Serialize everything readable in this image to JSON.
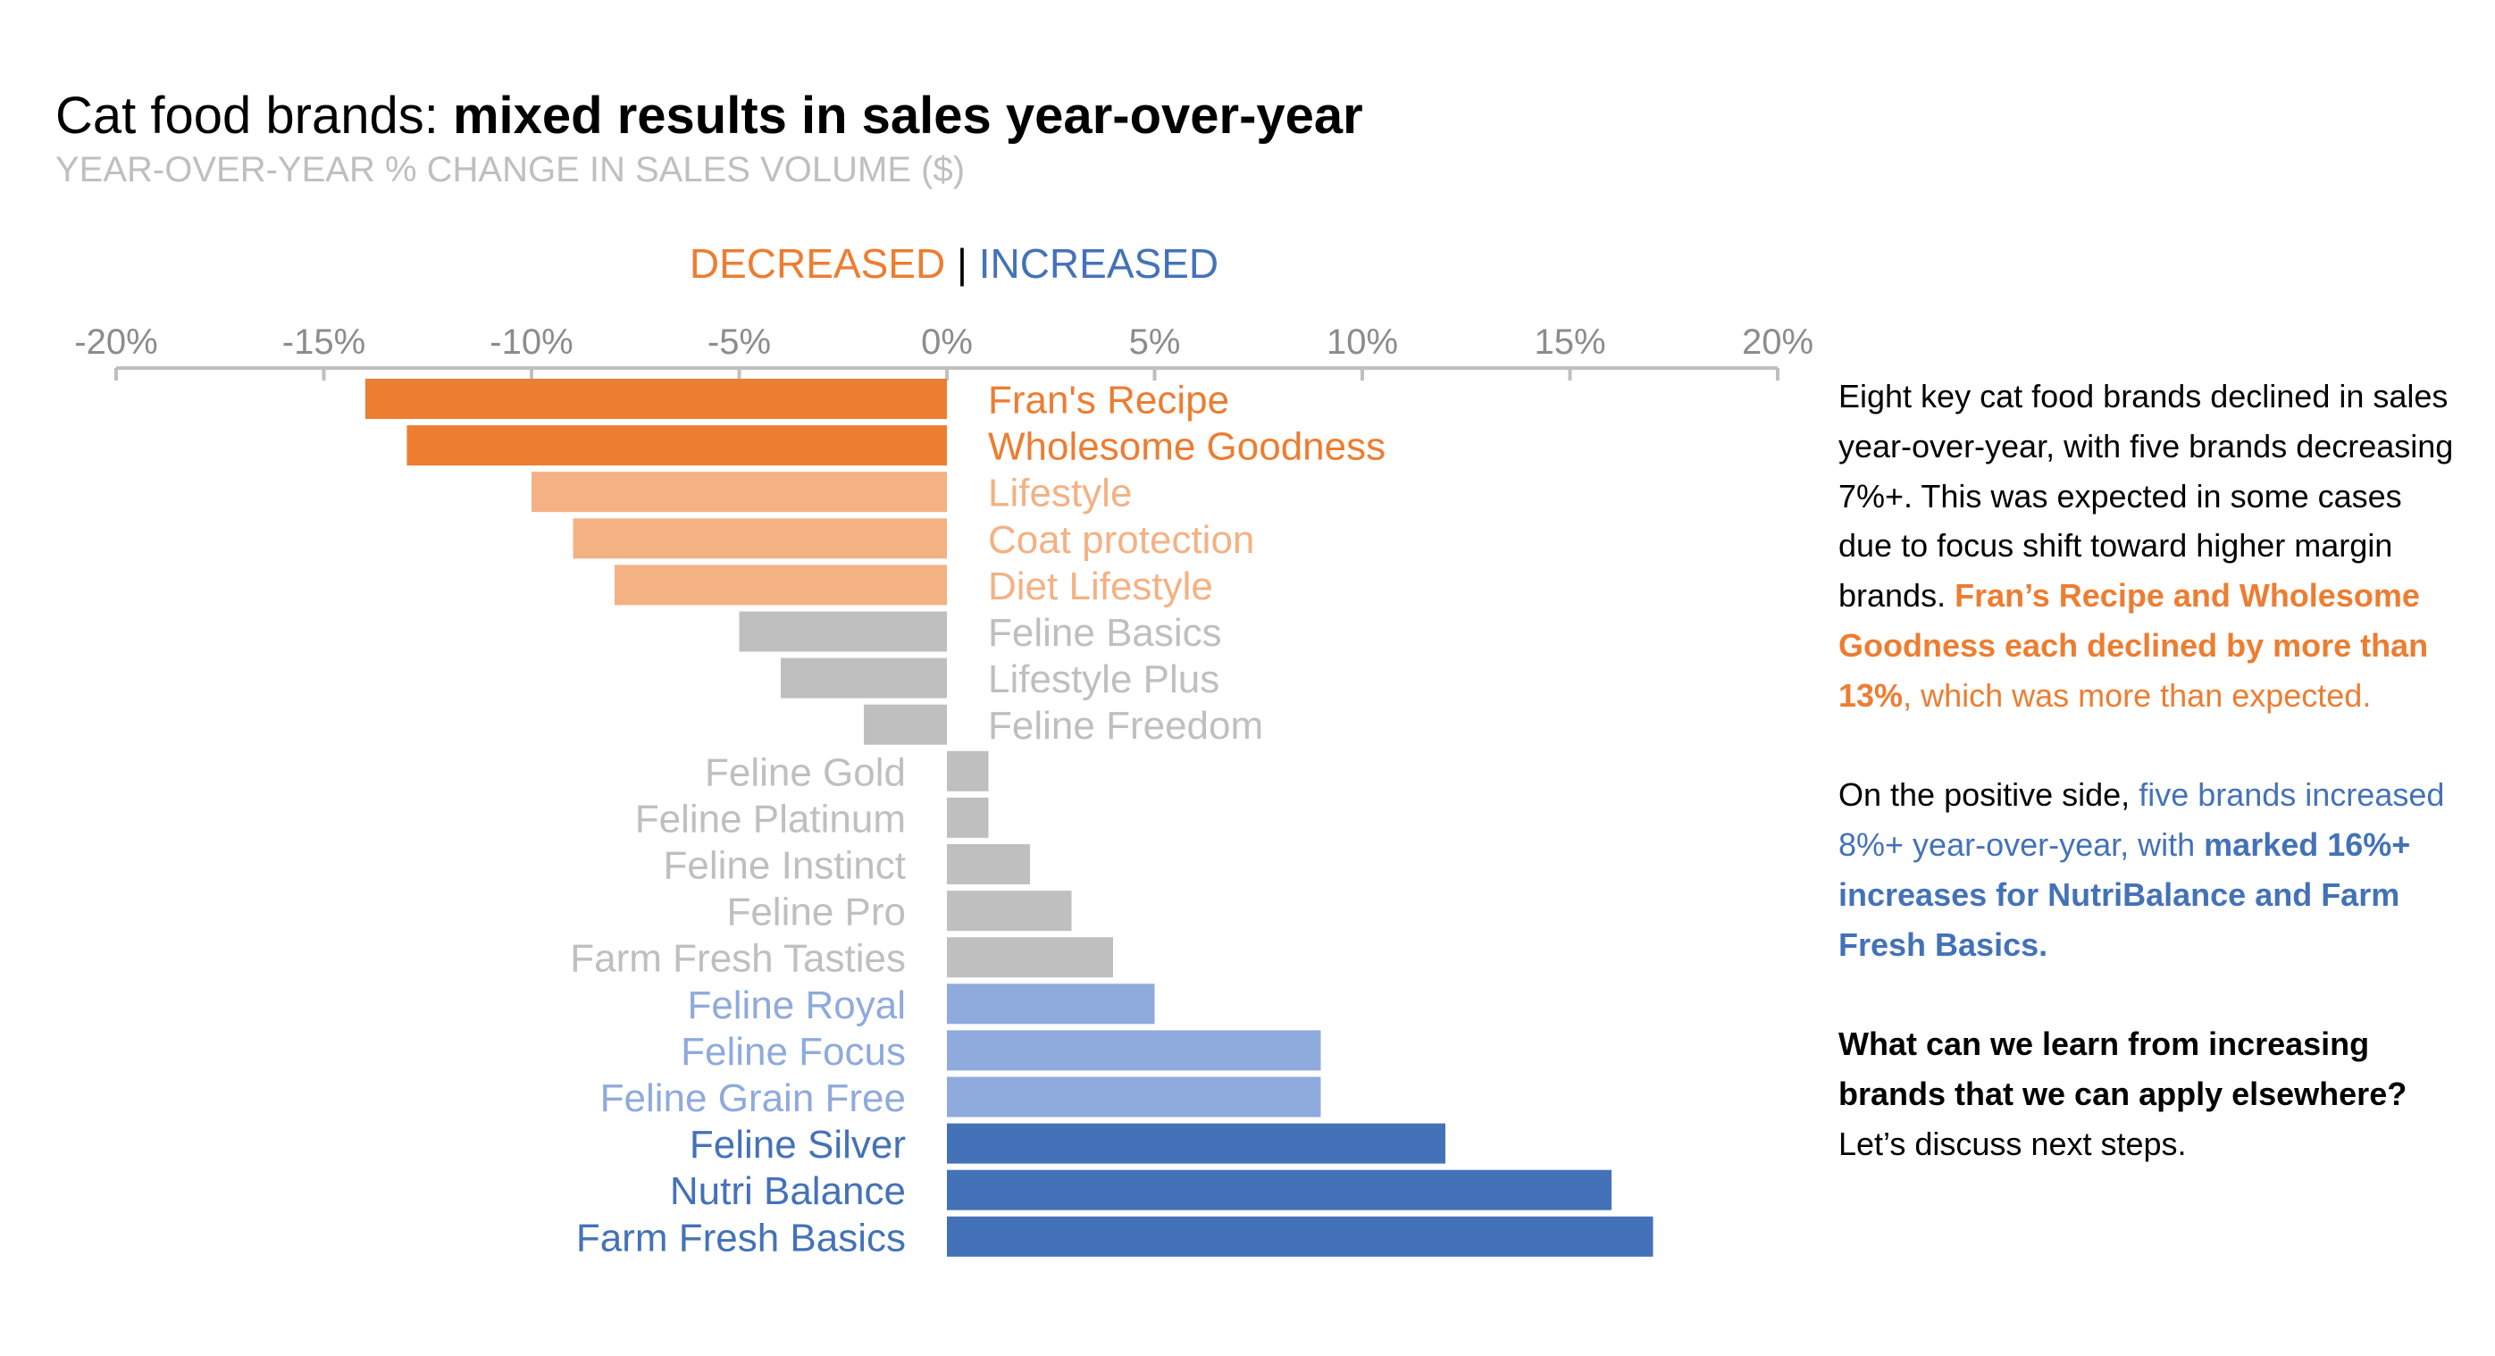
{
  "title": {
    "lead": "Cat food brands: ",
    "emphasis": "mixed results in sales year-over-year"
  },
  "subtitle": "YEAR-OVER-YEAR % CHANGE IN SALES VOLUME ($)",
  "legend": {
    "decreased": "DECREASED",
    "separator": "|",
    "increased": "INCREASED"
  },
  "colors": {
    "dark_orange": "#ed7d31",
    "light_orange": "#f4b183",
    "gray": "#bfbfbf",
    "light_blue": "#8faadc",
    "dark_blue": "#4472b8",
    "axis": "#bfbfbf",
    "tick_text": "#8c8c8c"
  },
  "chart_data": {
    "type": "bar",
    "orientation": "horizontal",
    "title": "Cat food brands: mixed results in sales year-over-year",
    "subtitle": "YEAR-OVER-YEAR % CHANGE IN SALES VOLUME ($)",
    "xlim": [
      -20,
      20
    ],
    "x_ticks": [
      -20,
      -15,
      -10,
      -5,
      0,
      5,
      10,
      15,
      20
    ],
    "x_tick_labels": [
      "-20%",
      "-15%",
      "-10%",
      "-5%",
      "0%",
      "5%",
      "10%",
      "15%",
      "20%"
    ],
    "axis_position": "top",
    "grid": false,
    "categories": [
      "Fran's Recipe",
      "Wholesome Goodness",
      "Lifestyle",
      "Coat protection",
      "Diet Lifestyle",
      "Feline Basics",
      "Lifestyle Plus",
      "Feline Freedom",
      "Feline Gold",
      "Feline Platinum",
      "Feline Instinct",
      "Feline Pro",
      "Farm Fresh Tasties",
      "Feline Royal",
      "Feline Focus",
      "Feline Grain Free",
      "Feline Silver",
      "Nutri Balance",
      "Farm Fresh Basics"
    ],
    "values": [
      -14,
      -13,
      -10,
      -9,
      -8,
      -5,
      -4,
      -2,
      1,
      1,
      2,
      3,
      4,
      5,
      9,
      9,
      12,
      16,
      17
    ],
    "color_groups": [
      "dark_orange",
      "dark_orange",
      "light_orange",
      "light_orange",
      "light_orange",
      "gray",
      "gray",
      "gray",
      "gray",
      "gray",
      "gray",
      "gray",
      "gray",
      "light_blue",
      "light_blue",
      "light_blue",
      "dark_blue",
      "dark_blue",
      "dark_blue"
    ]
  },
  "commentary": {
    "p1": {
      "s1": "Eight key cat food brands declined in sales year-over-year, with five brands decreasing 7%+. This was expected in some cases due to focus shift toward higher margin brands. ",
      "s2": "Fran’s Recipe and Wholesome Goodness each declined by more than 13%",
      "s3": ", which was more than expected."
    },
    "p2": {
      "s1": "On the positive side, ",
      "s2": "five brands increased 8%+ year-over-year, with ",
      "s3": "marked 16%+ increases for NutriBalance and Farm Fresh Basics."
    },
    "p3": {
      "s1": "What can we learn from increasing brands that we can apply elsewhere?",
      "s2": " Let’s discuss next steps."
    }
  }
}
